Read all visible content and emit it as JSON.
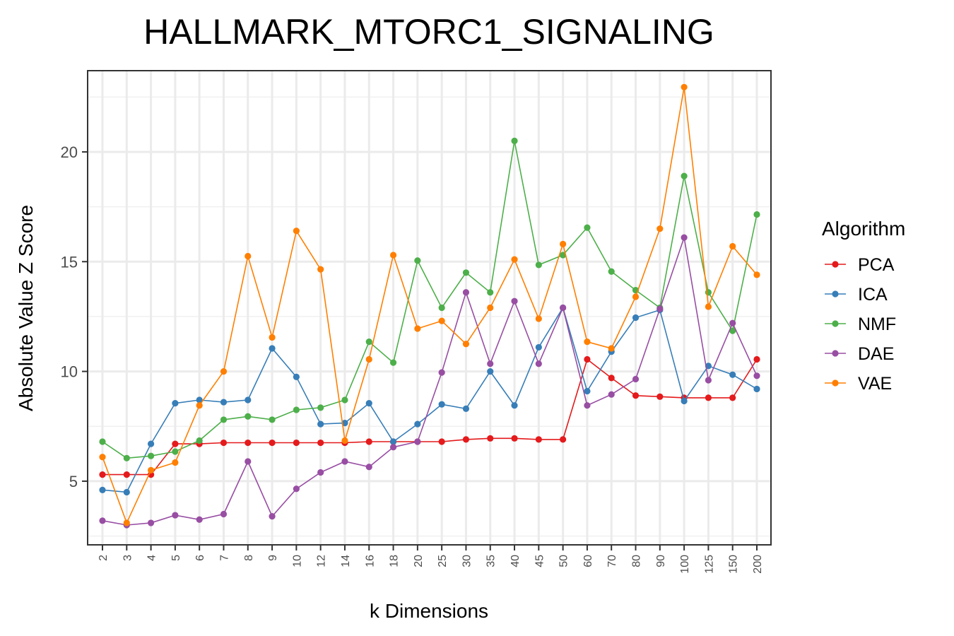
{
  "chart_data": {
    "type": "line",
    "title": "HALLMARK_MTORC1_SIGNALING",
    "xlabel": "k Dimensions",
    "ylabel": "Absolute Value Z Score",
    "categories": [
      "2",
      "3",
      "4",
      "5",
      "6",
      "7",
      "8",
      "9",
      "10",
      "12",
      "14",
      "16",
      "18",
      "20",
      "25",
      "30",
      "35",
      "40",
      "45",
      "50",
      "60",
      "70",
      "80",
      "90",
      "100",
      "125",
      "150",
      "200"
    ],
    "ylim": [
      2.1,
      23.7
    ],
    "yticks": [
      5,
      10,
      15,
      20
    ],
    "grid": true,
    "legend": {
      "title": "Algorithm",
      "position": "right"
    },
    "series": [
      {
        "name": "PCA",
        "color": "#E41A1C",
        "values": [
          5.3,
          5.3,
          5.3,
          6.7,
          6.7,
          6.75,
          6.75,
          6.75,
          6.75,
          6.75,
          6.75,
          6.8,
          6.8,
          6.8,
          6.8,
          6.9,
          6.95,
          6.95,
          6.9,
          6.9,
          10.55,
          9.7,
          8.9,
          8.85,
          8.8,
          8.8,
          8.8,
          10.55
        ]
      },
      {
        "name": "ICA",
        "color": "#377EB8",
        "values": [
          4.6,
          4.5,
          6.7,
          8.55,
          8.7,
          8.6,
          8.7,
          11.05,
          9.75,
          7.6,
          7.65,
          8.55,
          6.8,
          7.6,
          8.5,
          8.3,
          10.0,
          8.45,
          11.1,
          12.9,
          9.1,
          10.9,
          12.45,
          12.8,
          8.65,
          10.25,
          9.85,
          9.2
        ]
      },
      {
        "name": "NMF",
        "color": "#4DAF4A",
        "values": [
          6.8,
          6.05,
          6.15,
          6.35,
          6.85,
          7.8,
          7.95,
          7.8,
          8.25,
          8.35,
          8.7,
          11.35,
          10.4,
          15.05,
          12.9,
          14.5,
          13.6,
          20.5,
          14.85,
          15.3,
          16.55,
          14.55,
          13.7,
          12.9,
          18.9,
          13.6,
          11.85,
          17.15
        ]
      },
      {
        "name": "DAE",
        "color": "#984EA3",
        "values": [
          3.2,
          3.0,
          3.1,
          3.45,
          3.25,
          3.5,
          5.9,
          3.4,
          4.65,
          5.4,
          5.9,
          5.65,
          6.55,
          6.8,
          9.95,
          13.6,
          10.35,
          13.2,
          10.35,
          12.9,
          8.45,
          8.95,
          9.65,
          12.85,
          16.1,
          9.6,
          12.2,
          9.8
        ]
      },
      {
        "name": "VAE",
        "color": "#FF7F00",
        "values": [
          6.1,
          3.1,
          5.5,
          5.85,
          8.45,
          10.0,
          15.25,
          11.55,
          16.4,
          14.65,
          6.85,
          10.55,
          15.3,
          11.95,
          12.3,
          11.25,
          12.9,
          15.1,
          12.4,
          15.8,
          11.35,
          11.05,
          13.4,
          16.5,
          22.95,
          12.95,
          15.7,
          14.4
        ]
      }
    ]
  }
}
